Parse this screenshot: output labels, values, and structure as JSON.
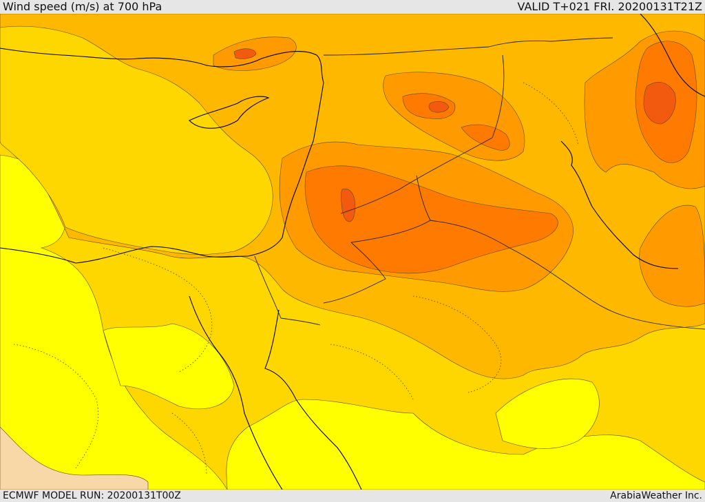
{
  "header": {
    "title": "Wind speed (m/s) at 700 hPa",
    "valid": "VALID T+021 FRI. 20200131T21Z"
  },
  "footer": {
    "model_run": "ECMWF MODEL RUN: 20200131T00Z",
    "credit": "ArabiaWeather Inc."
  },
  "colors": {
    "band_lightest": "#f9d8a8",
    "band_yellow": "#ffff00",
    "band_gold": "#ffd700",
    "band_amber": "#ffb800",
    "band_orange": "#ff9a00",
    "band_deep_orange": "#ff7a00",
    "band_red_orange": "#f25a10",
    "coastline": "#000000"
  }
}
